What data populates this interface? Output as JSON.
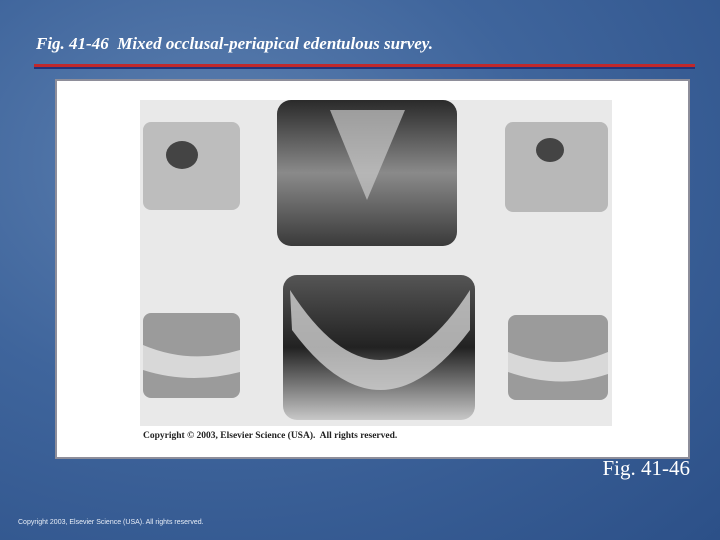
{
  "header": {
    "title": "Fig. 41-46  Mixed occlusal-periapical edentulous survey."
  },
  "figure": {
    "credit": "Copyright © 2003, Elsevier Science (USA).  All rights reserved.",
    "label": "Fig. 41-46"
  },
  "footer": {
    "copyright": "Copyright 2003, Elsevier Science (USA). All rights reserved."
  }
}
